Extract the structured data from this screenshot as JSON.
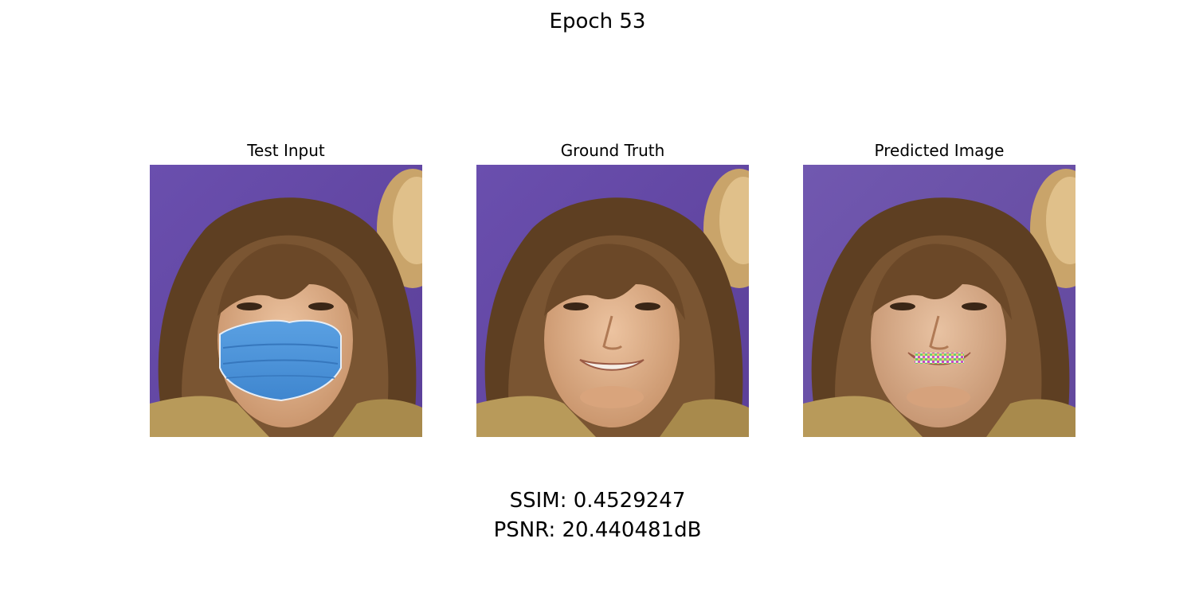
{
  "figure": {
    "title": "Epoch 53"
  },
  "panels": [
    {
      "title": "Test Input",
      "variant": "masked"
    },
    {
      "title": "Ground Truth",
      "variant": "clean"
    },
    {
      "title": "Predicted Image",
      "variant": "predicted"
    }
  ],
  "metrics": {
    "ssim": "SSIM: 0.4529247",
    "psnr": "PSNR: 20.440481dB"
  },
  "colors": {
    "background_purple": "#6b4ea8",
    "hair_brown": "#6b4a2a",
    "skin": "#e2b58e",
    "mask_blue": "#4a8fd6",
    "jacket_tan": "#b89a5a"
  }
}
